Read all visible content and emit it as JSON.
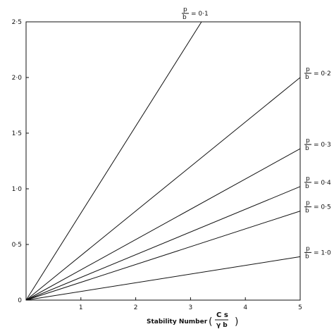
{
  "chart_data": {
    "type": "line",
    "title": "",
    "xlabel": {
      "text": "Stability Number",
      "fraction_num": "C s",
      "fraction_den": "γ b"
    },
    "ylabel": "",
    "xlim": [
      0,
      5
    ],
    "ylim": [
      0,
      2.5
    ],
    "x_ticks": [
      {
        "value": 1,
        "label": "1"
      },
      {
        "value": 2,
        "label": "2"
      },
      {
        "value": 3,
        "label": "3"
      },
      {
        "value": 4,
        "label": "4"
      },
      {
        "value": 5,
        "label": "5"
      }
    ],
    "y_ticks": [
      {
        "value": 0,
        "label": "0"
      },
      {
        "value": 0.5,
        "label": "0·5"
      },
      {
        "value": 1.0,
        "label": "1·0"
      },
      {
        "value": 1.5,
        "label": "1·5"
      },
      {
        "value": 2.0,
        "label": "2·0"
      },
      {
        "value": 2.5,
        "label": "2·5"
      }
    ],
    "grid": false,
    "series": [
      {
        "name": "p/b = 0·1",
        "num": "p",
        "den": "b",
        "value_text": "= 0·1",
        "x": [
          0,
          3.2
        ],
        "y": [
          0,
          2.5
        ]
      },
      {
        "name": "p/b = 0·2",
        "num": "p",
        "den": "b",
        "value_text": "= 0·2",
        "x": [
          0,
          5
        ],
        "y": [
          0,
          2.0
        ]
      },
      {
        "name": "p/b = 0·3",
        "num": "p",
        "den": "b",
        "value_text": "= 0·3",
        "x": [
          0,
          5
        ],
        "y": [
          0,
          1.36
        ]
      },
      {
        "name": "p/b = 0·4",
        "num": "p",
        "den": "b",
        "value_text": "= 0·4",
        "x": [
          0,
          5
        ],
        "y": [
          0,
          1.02
        ]
      },
      {
        "name": "p/b = 0·5",
        "num": "p",
        "den": "b",
        "value_text": "= 0·5",
        "x": [
          0,
          5
        ],
        "y": [
          0,
          0.8
        ]
      },
      {
        "name": "p/b = 1·0",
        "num": "p",
        "den": "b",
        "value_text": "= 1·0",
        "x": [
          0,
          5
        ],
        "y": [
          0,
          0.39
        ]
      }
    ]
  }
}
